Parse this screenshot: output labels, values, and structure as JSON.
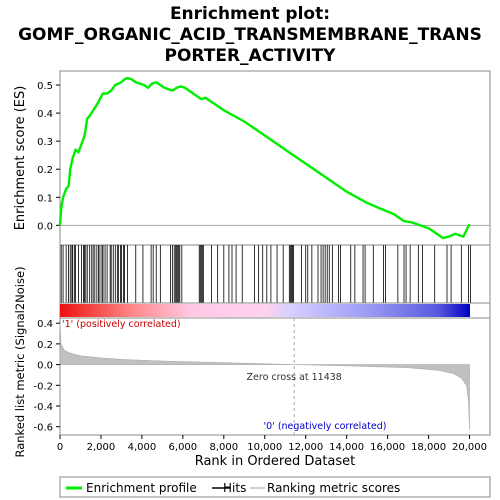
{
  "chart_data": {
    "type": "line",
    "title_lines": [
      "Enrichment plot:",
      "GOMF_ORGANIC_ACID_TRANSMEMBRANE_TRANS",
      "PORTER_ACTIVITY"
    ],
    "ylabel_top": "Enrichment score (ES)",
    "ylabel_bottom": "Ranked list metric (Signal2Noise)",
    "xlabel": "Rank in Ordered Dataset",
    "x_range": [
      0,
      21000
    ],
    "x_ticks": [
      0,
      2000,
      4000,
      6000,
      8000,
      10000,
      12000,
      14000,
      16000,
      18000,
      20000
    ],
    "x_tick_labels": [
      "0",
      "2,000",
      "4,000",
      "6,000",
      "8,000",
      "10,000",
      "12,000",
      "14,000",
      "16,000",
      "18,000",
      "20,000"
    ],
    "es_ylim": [
      -0.07,
      0.55
    ],
    "es_ticks": [
      0.0,
      0.1,
      0.2,
      0.3,
      0.4,
      0.5
    ],
    "es_tick_labels": [
      "0.0",
      "0.1",
      "0.2",
      "0.3",
      "0.4",
      "0.5"
    ],
    "metric_ylim": [
      -0.68,
      0.45
    ],
    "metric_ticks": [
      0.4,
      0.2,
      0.0,
      -0.2,
      -0.4,
      -0.6
    ],
    "metric_tick_labels": [
      "0.4",
      "0.2",
      "0.0",
      "-0.2",
      "-0.4",
      "-0.6"
    ],
    "series": [
      {
        "name": "Enrichment profile",
        "color": "#00ee00",
        "x": [
          0,
          60,
          150,
          300,
          420,
          500,
          620,
          760,
          900,
          1050,
          1200,
          1330,
          1450,
          1620,
          1800,
          1950,
          2100,
          2300,
          2500,
          2700,
          2850,
          3000,
          3150,
          3300,
          3500,
          3700,
          3900,
          4100,
          4300,
          4500,
          4700,
          4900,
          5100,
          5300,
          5500,
          5700,
          5900,
          6100,
          6300,
          6600,
          6900,
          7100,
          7400,
          8000,
          9000,
          10000,
          11000,
          12000,
          13000,
          14000,
          15000,
          15800,
          16300,
          16800,
          17200,
          17600,
          18000,
          18400,
          18700,
          19000,
          19300,
          19700,
          20000
        ],
        "values": [
          0.0,
          0.06,
          0.1,
          0.13,
          0.14,
          0.2,
          0.24,
          0.27,
          0.26,
          0.29,
          0.32,
          0.38,
          0.39,
          0.41,
          0.43,
          0.45,
          0.47,
          0.47,
          0.48,
          0.5,
          0.505,
          0.51,
          0.52,
          0.525,
          0.52,
          0.51,
          0.505,
          0.5,
          0.49,
          0.505,
          0.51,
          0.5,
          0.49,
          0.485,
          0.48,
          0.49,
          0.495,
          0.49,
          0.48,
          0.465,
          0.45,
          0.455,
          0.44,
          0.41,
          0.37,
          0.32,
          0.27,
          0.22,
          0.17,
          0.12,
          0.08,
          0.055,
          0.04,
          0.015,
          0.01,
          0.0,
          -0.01,
          -0.03,
          -0.045,
          -0.04,
          -0.03,
          -0.04,
          0.005
        ]
      },
      {
        "name": "Hits",
        "color": "#000000",
        "x": [
          60,
          150,
          300,
          420,
          500,
          580,
          620,
          700,
          760,
          900,
          1050,
          1150,
          1200,
          1260,
          1330,
          1450,
          1550,
          1620,
          1700,
          1800,
          1880,
          1950,
          2050,
          2100,
          2200,
          2300,
          2450,
          2500,
          2600,
          2700,
          2800,
          2850,
          2950,
          3000,
          3100,
          3150,
          3300,
          3700,
          4050,
          4450,
          4550,
          4700,
          4900,
          5400,
          5500,
          5580,
          5650,
          5700,
          5750,
          5800,
          5850,
          5950,
          6800,
          6850,
          6900,
          6950,
          7000,
          7400,
          7700,
          8000,
          8250,
          8400,
          8600,
          8900,
          9500,
          9700,
          9900,
          10100,
          10300,
          10600,
          10900,
          11200,
          11250,
          11300,
          11350,
          11400,
          11800,
          12000,
          12100,
          12300,
          12600,
          12750,
          12850,
          12950,
          13050,
          13150,
          13300,
          13600,
          13700,
          14200,
          14400,
          14800,
          14900,
          15300,
          15800,
          15900,
          16500,
          16800,
          16900,
          17100,
          17500,
          17700,
          18300,
          18900,
          19100,
          19600,
          19950,
          20050
        ]
      },
      {
        "name": "Ranking metric scores",
        "color": "#c0c0c0",
        "x": [
          0,
          50,
          200,
          500,
          1000,
          2000,
          3000,
          5000,
          8000,
          11438,
          14000,
          17000,
          18500,
          19200,
          19600,
          19850,
          19950,
          20000
        ],
        "values": [
          0.41,
          0.2,
          0.14,
          0.11,
          0.085,
          0.065,
          0.05,
          0.035,
          0.018,
          0.0,
          -0.012,
          -0.03,
          -0.055,
          -0.085,
          -0.13,
          -0.2,
          -0.35,
          -0.63
        ]
      }
    ],
    "zero_cross_x": 11438,
    "zero_cross_label": "Zero cross at 11438",
    "positive_label": "'1' (positively correlated)",
    "negative_label": "'0' (negatively correlated)",
    "positive_label_color": "#cc0000",
    "negative_label_color": "#0000cc",
    "legend_position": "bottom",
    "legend_labels": [
      "Enrichment profile",
      "Hits",
      "Ranking metric scores"
    ]
  }
}
